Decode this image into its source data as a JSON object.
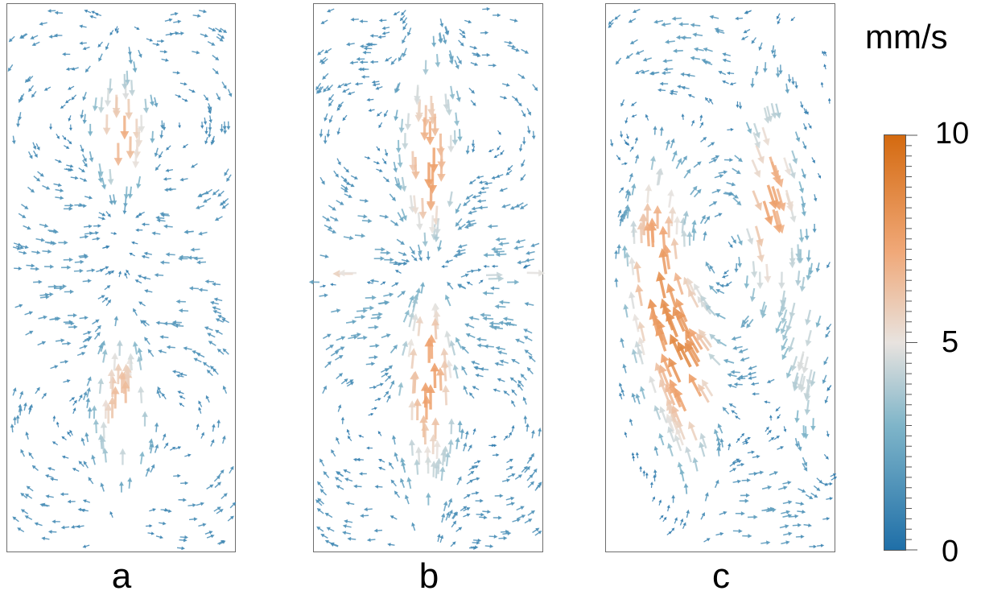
{
  "panels": [
    {
      "id": "a",
      "label": "a"
    },
    {
      "id": "b",
      "label": "b"
    },
    {
      "id": "c",
      "label": "c"
    }
  ],
  "colorbar": {
    "unit": "mm/s",
    "min": 0,
    "max": 10,
    "tick_labels": [
      "10",
      "5",
      "0"
    ],
    "colors": {
      "low": "#1f6fa8",
      "mid_low": "#7fb5c9",
      "mid": "#e8e3df",
      "mid_high": "#f0a878",
      "high": "#d46a10"
    }
  },
  "colors": {
    "slow_arrow": "#3f8496",
    "frame": "#6e6e6e"
  }
}
